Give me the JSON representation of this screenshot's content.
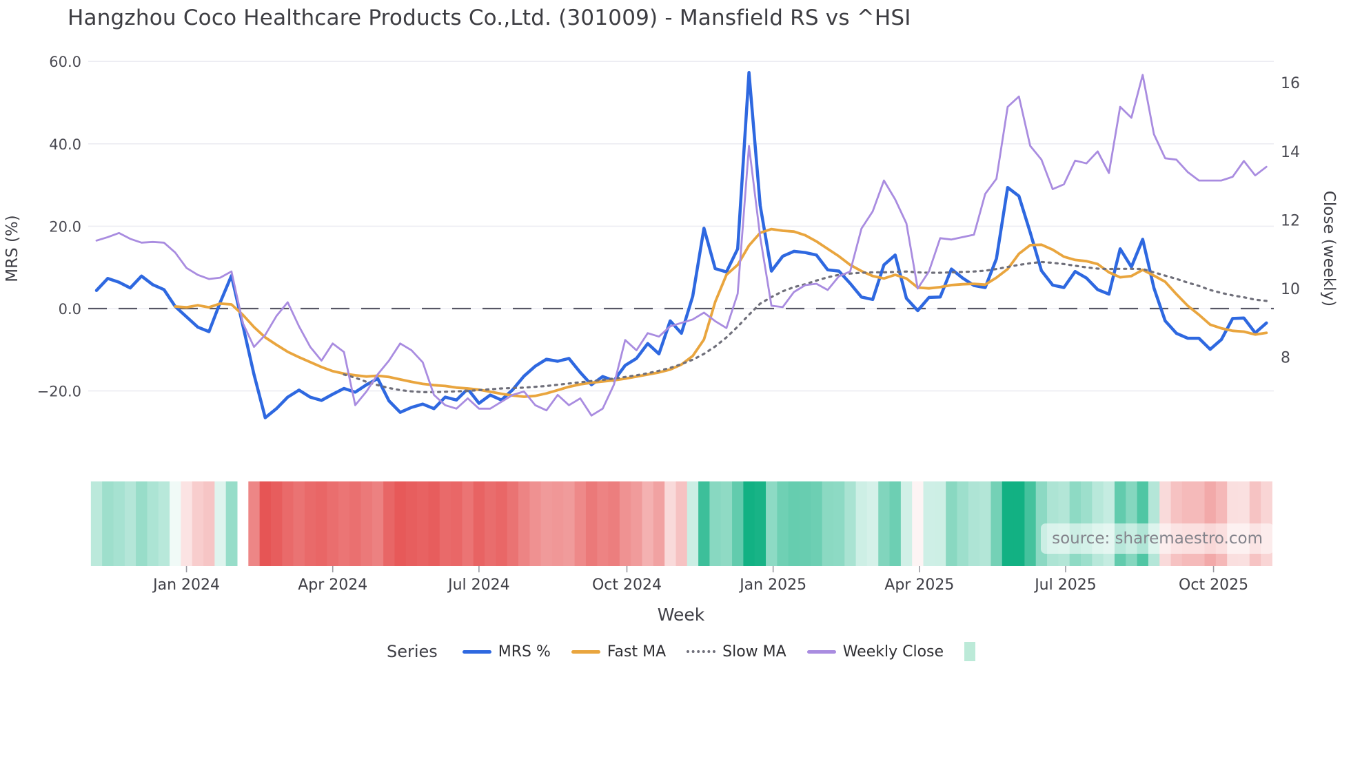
{
  "watermark": {
    "text": "source: sharemaestro.com"
  },
  "chart_data": {
    "type": "line",
    "title": "Hangzhou Coco Healthcare Products Co.,Ltd. (301009) - Mansfield RS vs ^HSI",
    "xlabel": "Week",
    "ylabel_left": "MRS (%)",
    "ylabel_right": "Close (weekly)",
    "left_axis": {
      "ticks": [
        60,
        40,
        20,
        0,
        -20
      ],
      "tick_labels": [
        "60.0",
        "40.0",
        "20.0",
        "0.0",
        "−20.0"
      ],
      "zero_line": true
    },
    "right_axis": {
      "ticks": [
        16,
        14,
        12,
        10,
        8
      ],
      "tick_labels": [
        "16",
        "14",
        "12",
        "10",
        "8"
      ]
    },
    "x_ticks": [
      {
        "label": "Jan 2024",
        "week_index": 8
      },
      {
        "label": "Apr 2024",
        "week_index": 21
      },
      {
        "label": "Jul 2024",
        "week_index": 34
      },
      {
        "label": "Oct 2024",
        "week_index": 47.15
      },
      {
        "label": "Jan 2025",
        "week_index": 60.15
      },
      {
        "label": "Apr 2025",
        "week_index": 73.15
      },
      {
        "label": "Jul 2025",
        "week_index": 86.15
      },
      {
        "label": "Oct 2025",
        "week_index": 99.3
      }
    ],
    "weeks": [
      "2023-11-06",
      "2023-11-13",
      "2023-11-20",
      "2023-11-27",
      "2023-12-04",
      "2023-12-11",
      "2023-12-18",
      "2023-12-25",
      "2024-01-01",
      "2024-01-08",
      "2024-01-15",
      "2024-01-22",
      "2024-01-29",
      "2024-02-05",
      "2024-02-12",
      "2024-02-19",
      "2024-02-26",
      "2024-03-04",
      "2024-03-11",
      "2024-03-18",
      "2024-03-25",
      "2024-04-01",
      "2024-04-08",
      "2024-04-15",
      "2024-04-22",
      "2024-04-29",
      "2024-05-06",
      "2024-05-13",
      "2024-05-20",
      "2024-05-27",
      "2024-06-03",
      "2024-06-10",
      "2024-06-17",
      "2024-06-24",
      "2024-07-01",
      "2024-07-08",
      "2024-07-15",
      "2024-07-22",
      "2024-07-29",
      "2024-08-05",
      "2024-08-12",
      "2024-08-19",
      "2024-08-26",
      "2024-09-02",
      "2024-09-09",
      "2024-09-16",
      "2024-09-23",
      "2024-09-30",
      "2024-10-07",
      "2024-10-14",
      "2024-10-21",
      "2024-10-28",
      "2024-11-04",
      "2024-11-11",
      "2024-11-18",
      "2024-11-25",
      "2024-12-02",
      "2024-12-09",
      "2024-12-16",
      "2024-12-23",
      "2024-12-30",
      "2025-01-06",
      "2025-01-13",
      "2025-01-20",
      "2025-01-27",
      "2025-02-03",
      "2025-02-10",
      "2025-02-17",
      "2025-02-24",
      "2025-03-03",
      "2025-03-10",
      "2025-03-17",
      "2025-03-24",
      "2025-03-31",
      "2025-04-07",
      "2025-04-14",
      "2025-04-21",
      "2025-04-28",
      "2025-05-05",
      "2025-05-12",
      "2025-05-19",
      "2025-05-26",
      "2025-06-02",
      "2025-06-09",
      "2025-06-16",
      "2025-06-23",
      "2025-06-30",
      "2025-07-07",
      "2025-07-14",
      "2025-07-21",
      "2025-07-28",
      "2025-08-04",
      "2025-08-11",
      "2025-08-18",
      "2025-08-25",
      "2025-09-01",
      "2025-09-08",
      "2025-09-15",
      "2025-09-22",
      "2025-09-29",
      "2025-10-06",
      "2025-10-13",
      "2025-10-20",
      "2025-10-27",
      "2025-11-03"
    ],
    "series": [
      {
        "name": "MRS %",
        "axis": "left",
        "style": "solid",
        "color": "#2e68e0",
        "width": 4.5,
        "values": [
          4.4,
          7.3,
          6.4,
          5.0,
          7.9,
          5.8,
          4.6,
          0.5,
          -2.0,
          -4.5,
          -5.6,
          1.5,
          8.0,
          -4.0,
          -16.0,
          -26.5,
          -24.3,
          -21.5,
          -19.8,
          -21.5,
          -22.3,
          -20.8,
          -19.4,
          -20.3,
          -18.5,
          -17.0,
          -22.4,
          -25.2,
          -24.0,
          -23.2,
          -24.3,
          -21.5,
          -22.2,
          -19.5,
          -23.0,
          -21.0,
          -22.2,
          -19.7,
          -16.4,
          -14.0,
          -12.3,
          -12.8,
          -12.1,
          -15.5,
          -18.5,
          -16.5,
          -17.5,
          -13.8,
          -12.1,
          -8.5,
          -11.0,
          -3.0,
          -6.0,
          3.0,
          19.5,
          9.7,
          8.9,
          14.5,
          57.3,
          25.0,
          9.1,
          12.7,
          13.9,
          13.6,
          13.0,
          9.4,
          9.1,
          6.1,
          2.8,
          2.2,
          10.6,
          13.0,
          2.5,
          -0.5,
          2.7,
          2.8,
          9.6,
          7.4,
          5.6,
          5.1,
          12.1,
          29.4,
          27.3,
          18.5,
          9.2,
          5.7,
          5.1,
          9.0,
          7.4,
          4.6,
          3.5,
          14.5,
          10.1,
          16.8,
          5.0,
          -3.0,
          -6.0,
          -7.2,
          -7.2,
          -9.9,
          -7.5,
          -2.4,
          -2.3,
          -5.9,
          -3.5
        ]
      },
      {
        "name": "Fast MA",
        "axis": "left",
        "style": "solid",
        "color": "#e9a53e",
        "width": 3.8,
        "values": [
          null,
          null,
          null,
          null,
          null,
          null,
          null,
          0.5,
          0.3,
          0.8,
          0.3,
          1.2,
          1.0,
          -1.5,
          -4.5,
          -7.0,
          -8.8,
          -10.5,
          -11.8,
          -13.0,
          -14.2,
          -15.2,
          -15.8,
          -16.2,
          -16.5,
          -16.3,
          -16.6,
          -17.2,
          -17.8,
          -18.3,
          -18.6,
          -18.8,
          -19.2,
          -19.4,
          -19.7,
          -20.2,
          -20.7,
          -21.1,
          -21.4,
          -21.2,
          -20.6,
          -19.8,
          -19.0,
          -18.4,
          -18.0,
          -17.7,
          -17.4,
          -17.0,
          -16.5,
          -16.0,
          -15.5,
          -14.8,
          -13.6,
          -11.5,
          -7.5,
          1.6,
          8.2,
          10.6,
          15.3,
          18.4,
          19.3,
          18.9,
          18.7,
          17.8,
          16.3,
          14.5,
          12.7,
          10.6,
          9.1,
          7.9,
          7.3,
          8.2,
          7.3,
          5.1,
          4.9,
          5.2,
          5.7,
          5.9,
          6.0,
          5.8,
          7.5,
          9.6,
          13.3,
          15.4,
          15.5,
          14.3,
          12.6,
          11.8,
          11.5,
          10.8,
          8.8,
          7.6,
          7.9,
          9.4,
          8.0,
          6.5,
          3.5,
          0.7,
          -1.5,
          -3.9,
          -4.8,
          -5.4,
          -5.6,
          -6.3,
          -5.9
        ]
      },
      {
        "name": "Slow MA",
        "axis": "left",
        "style": "dotted",
        "color": "#6f6f7a",
        "width": 3.2,
        "values": [
          null,
          null,
          null,
          null,
          null,
          null,
          null,
          null,
          null,
          null,
          null,
          null,
          null,
          null,
          null,
          null,
          null,
          null,
          null,
          null,
          null,
          null,
          -16.0,
          -16.8,
          -17.8,
          -18.6,
          -19.3,
          -19.8,
          -20.1,
          -20.3,
          -20.3,
          -20.2,
          -20.1,
          -20.0,
          -19.8,
          -19.6,
          -19.4,
          -19.3,
          -19.2,
          -19.0,
          -18.8,
          -18.5,
          -18.2,
          -17.9,
          -17.6,
          -17.3,
          -17.0,
          -16.6,
          -16.2,
          -15.7,
          -15.1,
          -14.4,
          -13.5,
          -12.4,
          -11.0,
          -9.2,
          -7.0,
          -4.4,
          -1.5,
          1.2,
          2.8,
          4.2,
          5.2,
          5.9,
          6.8,
          7.6,
          8.2,
          8.5,
          8.7,
          8.8,
          8.8,
          8.9,
          9.0,
          8.8,
          8.7,
          8.7,
          8.8,
          8.9,
          9.0,
          9.2,
          9.6,
          10.1,
          10.6,
          11.0,
          11.3,
          11.1,
          10.8,
          10.4,
          10.0,
          9.7,
          9.6,
          9.65,
          9.65,
          9.6,
          8.8,
          8.0,
          7.2,
          6.3,
          5.5,
          4.5,
          3.8,
          3.2,
          2.75,
          2.15,
          1.85
        ]
      },
      {
        "name": "Weekly Close",
        "axis": "right",
        "style": "solid",
        "color": "#a98ce0",
        "width": 2.8,
        "values": [
          11.4,
          11.5,
          11.62,
          11.45,
          11.34,
          11.36,
          11.34,
          11.05,
          10.6,
          10.4,
          10.28,
          10.32,
          10.5,
          9.0,
          8.3,
          8.65,
          9.2,
          9.6,
          8.9,
          8.3,
          7.9,
          8.4,
          8.15,
          6.6,
          7.0,
          7.5,
          7.9,
          8.4,
          8.2,
          7.85,
          6.9,
          6.6,
          6.5,
          6.8,
          6.5,
          6.5,
          6.7,
          6.9,
          7.0,
          6.6,
          6.45,
          6.9,
          6.6,
          6.8,
          6.3,
          6.5,
          7.2,
          8.5,
          8.2,
          8.7,
          8.6,
          8.9,
          9.0,
          9.1,
          9.3,
          9.05,
          8.85,
          9.85,
          14.16,
          11.5,
          9.5,
          9.46,
          9.9,
          10.1,
          10.14,
          9.96,
          10.36,
          10.5,
          11.75,
          12.25,
          13.15,
          12.6,
          11.9,
          10.0,
          10.5,
          11.47,
          11.43,
          11.5,
          11.57,
          12.76,
          13.2,
          15.3,
          15.6,
          14.16,
          13.76,
          12.9,
          13.04,
          13.73,
          13.65,
          14.0,
          13.37,
          15.3,
          14.98,
          16.23,
          14.5,
          13.8,
          13.76,
          13.4,
          13.15,
          13.15,
          13.15,
          13.26,
          13.72,
          13.3,
          13.55
        ]
      }
    ],
    "heatmap": {
      "source_series": "MRS %",
      "positive_color": "#12b183",
      "negative_color": "#e65555",
      "max_abs": 26,
      "gap_indices": [
        13
      ]
    },
    "legend": {
      "title": "Series",
      "extra_swatch_color": "#bcead8"
    }
  }
}
